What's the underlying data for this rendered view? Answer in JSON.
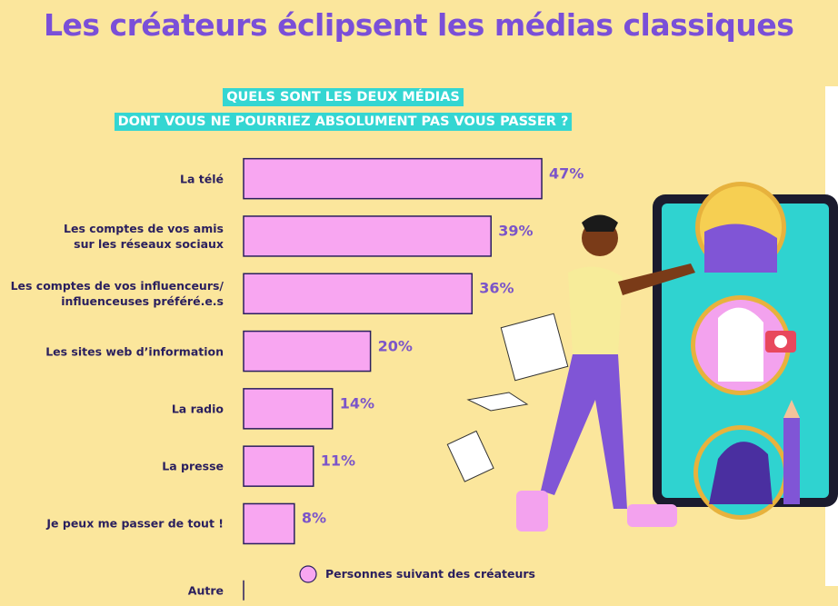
{
  "chart_data": {
    "type": "bar",
    "orientation": "horizontal",
    "title": "Les créateurs éclipsent les médias classiques",
    "subtitle": "QUELS SONT LES DEUX MÉDIAS\nDONT VOUS NE POURRIEZ ABSOLUMENT PAS VOUS PASSER ?",
    "categories": [
      "La télé",
      "Les comptes de vos amis\nsur les réseaux sociaux",
      "Les comptes de vos influenceurs/\ninfluenceuses préféré.e.s",
      "Les sites web d’information",
      "La radio",
      "La presse",
      "Je peux me passer de tout !",
      "Autre"
    ],
    "series": [
      {
        "name": "Personnes suivant des créateurs",
        "color": "#f8a6f1",
        "values": [
          47,
          39,
          36,
          20,
          14,
          11,
          8,
          0
        ],
        "value_labels": [
          "47%",
          "39%",
          "36%",
          "20%",
          "14%",
          "11%",
          "8%",
          null
        ]
      }
    ],
    "xlim": [
      0,
      50
    ]
  }
}
